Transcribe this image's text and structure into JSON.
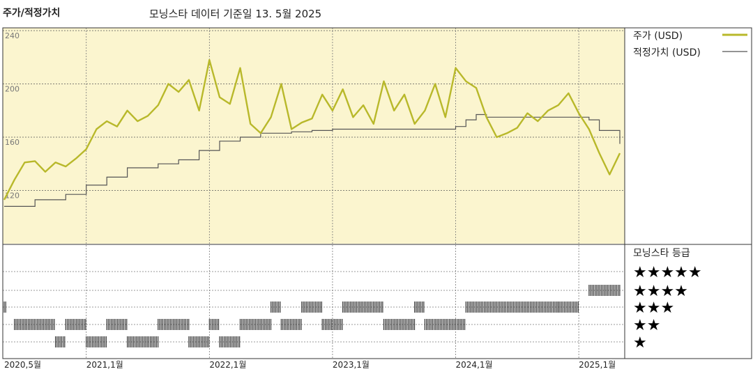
{
  "header": {
    "section_label": "주가/적정가치",
    "subtitle": "모닝스타 데이터 기준일 13. 5월 2025"
  },
  "colors": {
    "price_line": "#b8b82a",
    "fair_line": "#555555",
    "chart_bg": "#fbf5cf",
    "rating_bar": "#333333"
  },
  "legend": {
    "price_label": "주가 (USD)",
    "fair_label": "적정가치 (USD)",
    "rating_title": "모닝스타 등급"
  },
  "chart_data": [
    {
      "type": "line",
      "xlabel": "",
      "ylabel": "",
      "yticks": [
        "240",
        "200",
        "160",
        "120"
      ],
      "ylim": [
        80,
        240
      ],
      "x_tick_labels": [
        "2020,5월",
        "2021,1월",
        "2022,1월",
        "2023,1월",
        "2024,1월",
        "2025,1월"
      ],
      "series": [
        {
          "name": "주가 (USD)",
          "x": [
            "2020-05",
            "2020-06",
            "2020-07",
            "2020-08",
            "2020-09",
            "2020-10",
            "2020-11",
            "2020-12",
            "2021-01",
            "2021-02",
            "2021-03",
            "2021-04",
            "2021-05",
            "2021-06",
            "2021-07",
            "2021-08",
            "2021-09",
            "2021-10",
            "2021-11",
            "2021-12",
            "2022-01",
            "2022-02",
            "2022-03",
            "2022-04",
            "2022-05",
            "2022-06",
            "2022-07",
            "2022-08",
            "2022-09",
            "2022-10",
            "2022-11",
            "2022-12",
            "2023-01",
            "2023-02",
            "2023-03",
            "2023-04",
            "2023-05",
            "2023-06",
            "2023-07",
            "2023-08",
            "2023-09",
            "2023-10",
            "2023-11",
            "2023-12",
            "2024-01",
            "2024-02",
            "2024-03",
            "2024-04",
            "2024-05",
            "2024-06",
            "2024-07",
            "2024-08",
            "2024-09",
            "2024-10",
            "2024-11",
            "2024-12",
            "2025-01",
            "2025-02",
            "2025-03",
            "2025-04",
            "2025-05"
          ],
          "values": [
            113,
            128,
            141,
            142,
            134,
            141,
            138,
            144,
            151,
            166,
            172,
            168,
            180,
            172,
            176,
            184,
            200,
            194,
            203,
            180,
            218,
            190,
            185,
            212,
            170,
            163,
            175,
            200,
            166,
            171,
            174,
            192,
            180,
            196,
            175,
            184,
            170,
            202,
            180,
            192,
            170,
            180,
            200,
            175,
            212,
            202,
            197,
            175,
            160,
            163,
            167,
            178,
            172,
            180,
            184,
            193,
            178,
            166,
            148,
            132,
            148
          ]
        },
        {
          "name": "적정가치 (USD)",
          "x": [
            "2020-05",
            "2020-08",
            "2020-11",
            "2021-01",
            "2021-03",
            "2021-05",
            "2021-08",
            "2021-10",
            "2021-12",
            "2022-02",
            "2022-04",
            "2022-06",
            "2022-09",
            "2022-11",
            "2023-01",
            "2023-06",
            "2023-10",
            "2024-01",
            "2024-02",
            "2024-03",
            "2024-04",
            "2024-09",
            "2024-12",
            "2025-02",
            "2025-03",
            "2025-05"
          ],
          "values": [
            108,
            113,
            117,
            124,
            130,
            137,
            140,
            143,
            150,
            157,
            160,
            163,
            164,
            165,
            166,
            166,
            166,
            168,
            173,
            177,
            175,
            175,
            175,
            173,
            165,
            155
          ]
        }
      ]
    },
    {
      "type": "bar",
      "title": "모닝스타 등급",
      "categories": [
        "★★★★★",
        "★★★★",
        "★★★",
        "★★",
        "★"
      ],
      "periods": [
        {
          "start": "2020-05",
          "end": "2020-05",
          "stars": 3
        },
        {
          "start": "2020-06",
          "end": "2020-10",
          "stars": 2
        },
        {
          "start": "2020-10",
          "end": "2020-11",
          "stars": 1
        },
        {
          "start": "2020-11",
          "end": "2021-01",
          "stars": 2
        },
        {
          "start": "2021-01",
          "end": "2021-03",
          "stars": 1
        },
        {
          "start": "2021-03",
          "end": "2021-05",
          "stars": 2
        },
        {
          "start": "2021-05",
          "end": "2021-08",
          "stars": 1
        },
        {
          "start": "2021-08",
          "end": "2021-11",
          "stars": 2
        },
        {
          "start": "2021-11",
          "end": "2022-01",
          "stars": 1
        },
        {
          "start": "2022-01",
          "end": "2022-02",
          "stars": 2
        },
        {
          "start": "2022-02",
          "end": "2022-04",
          "stars": 1
        },
        {
          "start": "2022-04",
          "end": "2022-07",
          "stars": 2
        },
        {
          "start": "2022-07",
          "end": "2022-08",
          "stars": 3
        },
        {
          "start": "2022-08",
          "end": "2022-10",
          "stars": 2
        },
        {
          "start": "2022-10",
          "end": "2022-12",
          "stars": 3
        },
        {
          "start": "2022-12",
          "end": "2023-02",
          "stars": 2
        },
        {
          "start": "2023-02",
          "end": "2023-06",
          "stars": 3
        },
        {
          "start": "2023-06",
          "end": "2023-09",
          "stars": 2
        },
        {
          "start": "2023-09",
          "end": "2023-10",
          "stars": 3
        },
        {
          "start": "2023-10",
          "end": "2024-02",
          "stars": 2
        },
        {
          "start": "2024-02",
          "end": "2024-11",
          "stars": 3
        },
        {
          "start": "2024-11",
          "end": "2025-01",
          "stars": 3
        },
        {
          "start": "2025-02",
          "end": "2025-05",
          "stars": 4
        }
      ]
    }
  ]
}
